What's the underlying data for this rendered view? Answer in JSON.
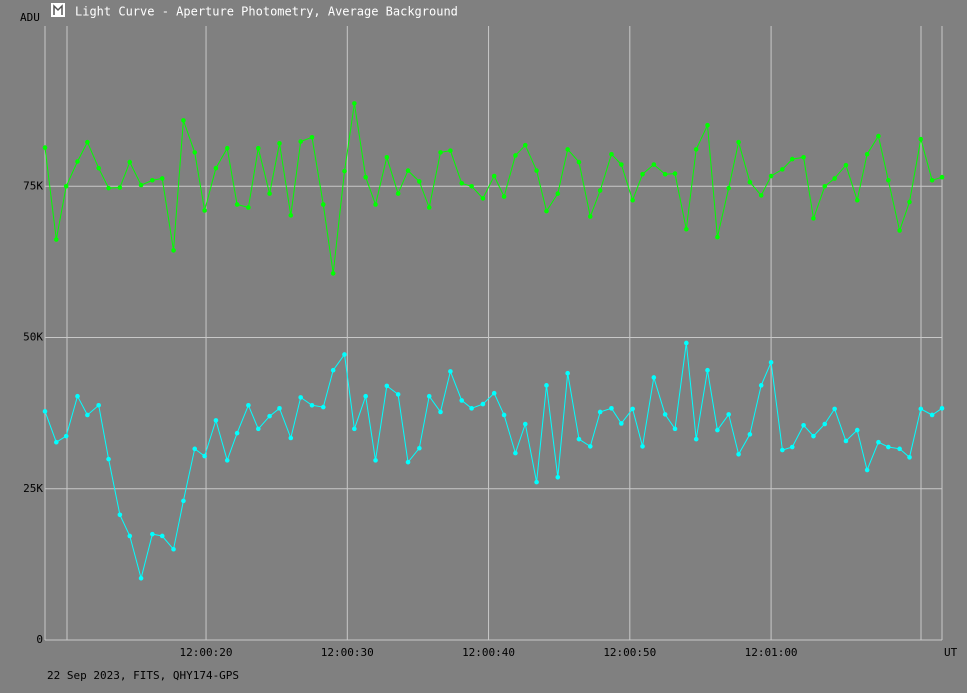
{
  "chart_data": {
    "type": "line",
    "title": "Light Curve - Aperture Photometry, Average Background",
    "y_label": "ADU",
    "x_label": "UT",
    "footer": "22 Sep 2023, FITS, QHY174-GPS",
    "grid": true,
    "xlim": [
      8.6,
      72.1
    ],
    "xticks": [
      {
        "value": 20,
        "label": "12:00:20"
      },
      {
        "value": 30,
        "label": "12:00:30"
      },
      {
        "value": 40,
        "label": "12:00:40"
      },
      {
        "value": 50,
        "label": "12:00:50"
      },
      {
        "value": 60,
        "label": "12:01:00"
      }
    ],
    "ylim": [
      0,
      101500
    ],
    "yticks": [
      0,
      {
        "value": 25000,
        "label": "25K"
      },
      {
        "value": 50000,
        "label": "50K"
      },
      {
        "value": 75000,
        "label": "75K"
      }
    ],
    "x": [
      8.6,
      9.4,
      10.1,
      10.9,
      11.6,
      12.4,
      13.1,
      13.9,
      14.6,
      15.4,
      16.2,
      16.9,
      17.7,
      18.4,
      19.2,
      19.9,
      20.7,
      21.5,
      22.2,
      23.0,
      23.7,
      24.5,
      25.2,
      26.0,
      26.7,
      27.5,
      28.3,
      29.0,
      29.8,
      30.5,
      31.3,
      32.0,
      32.8,
      33.6,
      34.3,
      35.1,
      35.8,
      36.6,
      37.3,
      38.1,
      38.8,
      39.6,
      40.4,
      41.1,
      41.9,
      42.6,
      43.4,
      44.1,
      44.9,
      45.6,
      46.4,
      47.2,
      47.9,
      48.7,
      49.4,
      50.2,
      50.9,
      51.7,
      52.5,
      53.2,
      54.0,
      54.7,
      55.5,
      56.2,
      57.0,
      57.7,
      58.5,
      59.3,
      60.0,
      60.8,
      61.5,
      62.3,
      63.0,
      63.8,
      64.5,
      65.3,
      66.1,
      66.8,
      67.6,
      68.3,
      69.1,
      69.8,
      70.6,
      71.4,
      72.1
    ],
    "series": [
      {
        "color": "#00ff00",
        "values": [
          81400,
          66200,
          75000,
          79100,
          82300,
          78000,
          74700,
          74800,
          79000,
          75200,
          76000,
          76300,
          64400,
          85900,
          80600,
          71000,
          78000,
          81300,
          72000,
          71500,
          81300,
          73800,
          82100,
          70200,
          82400,
          83100,
          72000,
          60600,
          77500,
          88700,
          76500,
          72000,
          79800,
          73800,
          77600,
          75800,
          71500,
          80600,
          80900,
          75500,
          75000,
          73000,
          76700,
          73300,
          80100,
          81800,
          77600,
          70900,
          73800,
          81100,
          79000,
          70000,
          74300,
          80300,
          78600,
          72700,
          77000,
          78600,
          77000,
          77100,
          67900,
          81100,
          85100,
          66600,
          74700,
          82300,
          75700,
          73500,
          76700,
          77800,
          79500,
          79800,
          69700,
          75000,
          76300,
          78500,
          72700,
          80300,
          83300,
          76000,
          67700,
          72400,
          82800,
          76000,
          76500
        ]
      },
      {
        "color": "#00ffff",
        "values": [
          37800,
          32700,
          33700,
          40300,
          37200,
          38800,
          29900,
          20700,
          17200,
          10200,
          17500,
          17200,
          15000,
          23000,
          31600,
          30400,
          36300,
          29700,
          34200,
          38800,
          34900,
          37000,
          38300,
          33400,
          40100,
          38800,
          38500,
          44600,
          47200,
          34900,
          40300,
          29700,
          42000,
          40600,
          29400,
          31700,
          40300,
          37700,
          44400,
          39600,
          38300,
          39000,
          40800,
          37200,
          30900,
          35700,
          26100,
          42100,
          26900,
          44100,
          33200,
          32000,
          37700,
          38300,
          35800,
          38200,
          32000,
          43400,
          37300,
          34900,
          49100,
          33200,
          44600,
          34700,
          37300,
          30700,
          34000,
          42100,
          45900,
          31400,
          31900,
          35500,
          33700,
          35700,
          38200,
          32900,
          34700,
          28100,
          32700,
          31900,
          31600,
          30200,
          38200,
          37200,
          38300
        ]
      }
    ]
  }
}
